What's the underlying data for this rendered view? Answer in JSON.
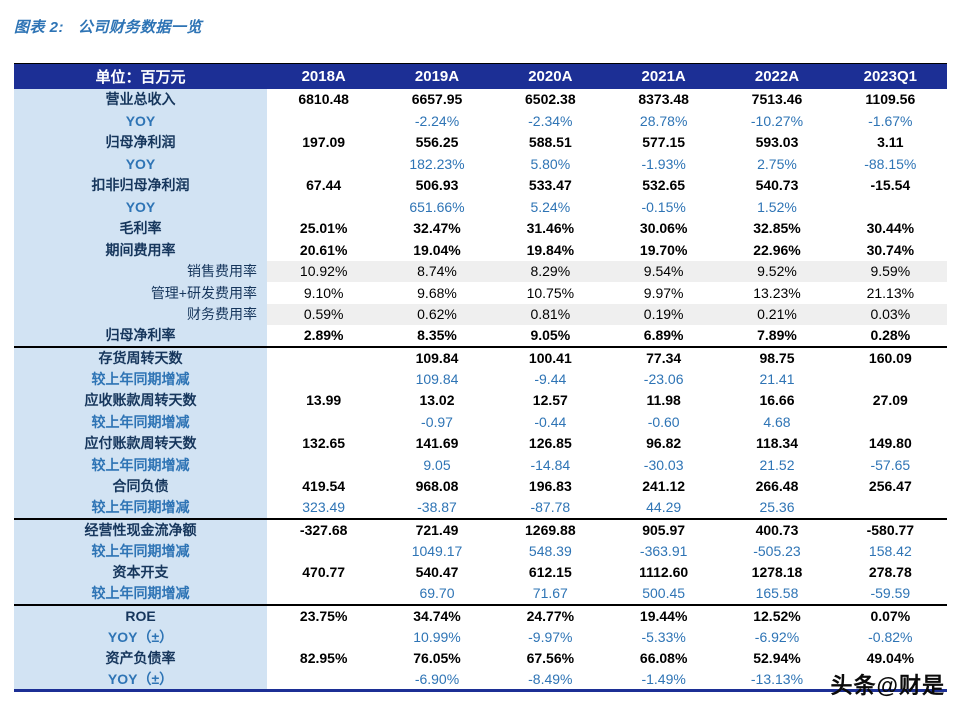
{
  "page": {
    "title_prefix": "图表 2:",
    "title": "公司财务数据一览",
    "watermark": "头条@财是"
  },
  "table": {
    "unit_header": "单位：百万元",
    "columns": [
      "2018A",
      "2019A",
      "2020A",
      "2021A",
      "2022A",
      "2023Q1"
    ],
    "rows": [
      {
        "label": "营业总收入",
        "type": "main",
        "values": [
          "6810.48",
          "6657.95",
          "6502.38",
          "8373.48",
          "7513.46",
          "1109.56"
        ]
      },
      {
        "label": "YOY",
        "type": "yoy",
        "values": [
          "",
          "-2.24%",
          "-2.34%",
          "28.78%",
          "-10.27%",
          "-1.67%"
        ]
      },
      {
        "label": "归母净利润",
        "type": "main",
        "values": [
          "197.09",
          "556.25",
          "588.51",
          "577.15",
          "593.03",
          "3.11"
        ]
      },
      {
        "label": "YOY",
        "type": "yoy",
        "values": [
          "",
          "182.23%",
          "5.80%",
          "-1.93%",
          "2.75%",
          "-88.15%"
        ]
      },
      {
        "label": "扣非归母净利润",
        "type": "main",
        "values": [
          "67.44",
          "506.93",
          "533.47",
          "532.65",
          "540.73",
          "-15.54"
        ]
      },
      {
        "label": "YOY",
        "type": "yoy",
        "values": [
          "",
          "651.66%",
          "5.24%",
          "-0.15%",
          "1.52%",
          ""
        ]
      },
      {
        "label": "毛利率",
        "type": "main",
        "values": [
          "25.01%",
          "32.47%",
          "31.46%",
          "30.06%",
          "32.85%",
          "30.44%"
        ]
      },
      {
        "label": "期间费用率",
        "type": "main",
        "values": [
          "20.61%",
          "19.04%",
          "19.84%",
          "19.70%",
          "22.96%",
          "30.74%"
        ]
      },
      {
        "label": "销售费用率",
        "type": "sub",
        "shaded": true,
        "values": [
          "10.92%",
          "8.74%",
          "8.29%",
          "9.54%",
          "9.52%",
          "9.59%"
        ]
      },
      {
        "label": "管理+研发费用率",
        "type": "sub",
        "values": [
          "9.10%",
          "9.68%",
          "10.75%",
          "9.97%",
          "13.23%",
          "21.13%"
        ]
      },
      {
        "label": "财务费用率",
        "type": "sub",
        "shaded": true,
        "values": [
          "0.59%",
          "0.62%",
          "0.81%",
          "0.19%",
          "0.21%",
          "0.03%"
        ]
      },
      {
        "label": "归母净利率",
        "type": "main",
        "values": [
          "2.89%",
          "8.35%",
          "9.05%",
          "6.89%",
          "7.89%",
          "0.28%"
        ]
      },
      {
        "label": "存货周转天数",
        "type": "main",
        "section_start": true,
        "values": [
          "",
          "109.84",
          "100.41",
          "77.34",
          "98.75",
          "160.09"
        ]
      },
      {
        "label": "较上年同期增减",
        "type": "yoy",
        "values": [
          "",
          "109.84",
          "-9.44",
          "-23.06",
          "21.41",
          ""
        ]
      },
      {
        "label": "应收账款周转天数",
        "type": "main",
        "values": [
          "13.99",
          "13.02",
          "12.57",
          "11.98",
          "16.66",
          "27.09"
        ]
      },
      {
        "label": "较上年同期增减",
        "type": "yoy",
        "values": [
          "",
          "-0.97",
          "-0.44",
          "-0.60",
          "4.68",
          ""
        ]
      },
      {
        "label": "应付账款周转天数",
        "type": "main",
        "values": [
          "132.65",
          "141.69",
          "126.85",
          "96.82",
          "118.34",
          "149.80"
        ]
      },
      {
        "label": "较上年同期增减",
        "type": "yoy",
        "values": [
          "",
          "9.05",
          "-14.84",
          "-30.03",
          "21.52",
          "-57.65"
        ]
      },
      {
        "label": "合同负债",
        "type": "main",
        "values": [
          "419.54",
          "968.08",
          "196.83",
          "241.12",
          "266.48",
          "256.47"
        ]
      },
      {
        "label": "较上年同期增减",
        "type": "yoy",
        "values": [
          "323.49",
          "-38.87",
          "-87.78",
          "44.29",
          "25.36",
          ""
        ]
      },
      {
        "label": "经营性现金流净额",
        "type": "main",
        "section_start": true,
        "values": [
          "-327.68",
          "721.49",
          "1269.88",
          "905.97",
          "400.73",
          "-580.77"
        ]
      },
      {
        "label": "较上年同期增减",
        "type": "yoy",
        "values": [
          "",
          "1049.17",
          "548.39",
          "-363.91",
          "-505.23",
          "158.42"
        ]
      },
      {
        "label": "资本开支",
        "type": "main",
        "values": [
          "470.77",
          "540.47",
          "612.15",
          "1112.60",
          "1278.18",
          "278.78"
        ]
      },
      {
        "label": "较上年同期增减",
        "type": "yoy",
        "values": [
          "",
          "69.70",
          "71.67",
          "500.45",
          "165.58",
          "-59.59"
        ]
      },
      {
        "label": "ROE",
        "type": "main",
        "section_start": true,
        "values": [
          "23.75%",
          "34.74%",
          "24.77%",
          "19.44%",
          "12.52%",
          "0.07%"
        ]
      },
      {
        "label": "YOY（±）",
        "type": "yoy",
        "values": [
          "",
          "10.99%",
          "-9.97%",
          "-5.33%",
          "-6.92%",
          "-0.82%"
        ]
      },
      {
        "label": "资产负债率",
        "type": "main",
        "values": [
          "82.95%",
          "76.05%",
          "67.56%",
          "66.08%",
          "52.94%",
          "49.04%"
        ]
      },
      {
        "label": "YOY（±）",
        "type": "yoy",
        "values": [
          "",
          "-6.90%",
          "-8.49%",
          "-1.49%",
          "-13.13%",
          ""
        ]
      }
    ],
    "colors": {
      "header_bg": "#1c2f95",
      "label_bg": "#d2e3f3",
      "shaded_bg": "#efefef",
      "label_text": "#16365c",
      "blue_text": "#2e74b5",
      "section_border": "#000000",
      "bottom_border": "#1c2f95"
    }
  }
}
